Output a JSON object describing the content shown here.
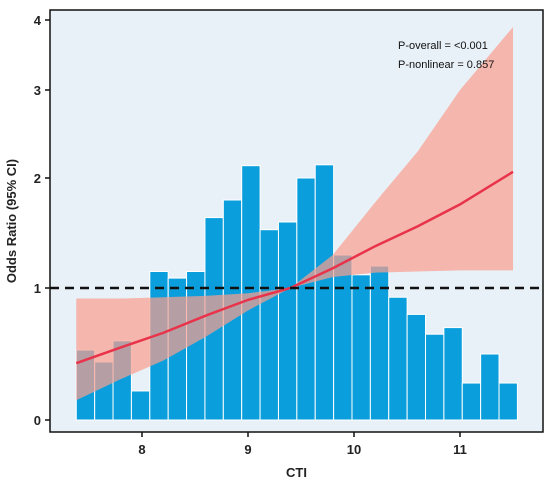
{
  "chart_data": {
    "type": "bar",
    "xlabel": "CTI",
    "ylabel": "Odds Ratio (95% CI)",
    "x_ticks": [
      8,
      9,
      10,
      11
    ],
    "y_ticks": [
      0,
      1,
      2,
      3,
      4
    ],
    "xlim": [
      7.3,
      11.6
    ],
    "annotations": [
      "P-overall = <0.001",
      "P-nonlinear = 0.857"
    ],
    "reference_line": {
      "y": 1,
      "style": "dashed"
    },
    "histogram": {
      "bin_start": 7.38,
      "bin_width": 0.1734,
      "values": [
        0.53,
        0.44,
        0.6,
        0.22,
        1.15,
        1.09,
        1.15,
        1.64,
        1.8,
        2.14,
        1.53,
        1.6,
        2.0,
        2.15,
        1.3,
        1.12,
        1.2,
        0.93,
        0.8,
        0.65,
        0.7,
        0.28,
        0.5,
        0.28
      ],
      "color": "#0a9fdc"
    },
    "series": [
      {
        "type": "line",
        "color": "#e8334a",
        "x": [
          7.38,
          7.8,
          8.2,
          8.6,
          9.0,
          9.4,
          9.8,
          10.2,
          10.6,
          11.0,
          11.5
        ],
        "y": [
          0.43,
          0.55,
          0.66,
          0.79,
          0.91,
          1.0,
          1.18,
          1.38,
          1.56,
          1.76,
          2.07
        ]
      },
      {
        "type": "band",
        "color": "#f8a090",
        "x": [
          7.38,
          7.8,
          8.2,
          8.6,
          9.0,
          9.4,
          9.8,
          10.2,
          10.6,
          11.0,
          11.5
        ],
        "upper": [
          0.92,
          0.92,
          0.93,
          0.94,
          0.96,
          1.0,
          1.3,
          1.78,
          2.3,
          3.0,
          3.9
        ],
        "lower": [
          0.15,
          0.31,
          0.45,
          0.63,
          0.83,
          1.0,
          1.1,
          1.14,
          1.15,
          1.16,
          1.16
        ]
      }
    ],
    "background": "#e9f1f8"
  }
}
